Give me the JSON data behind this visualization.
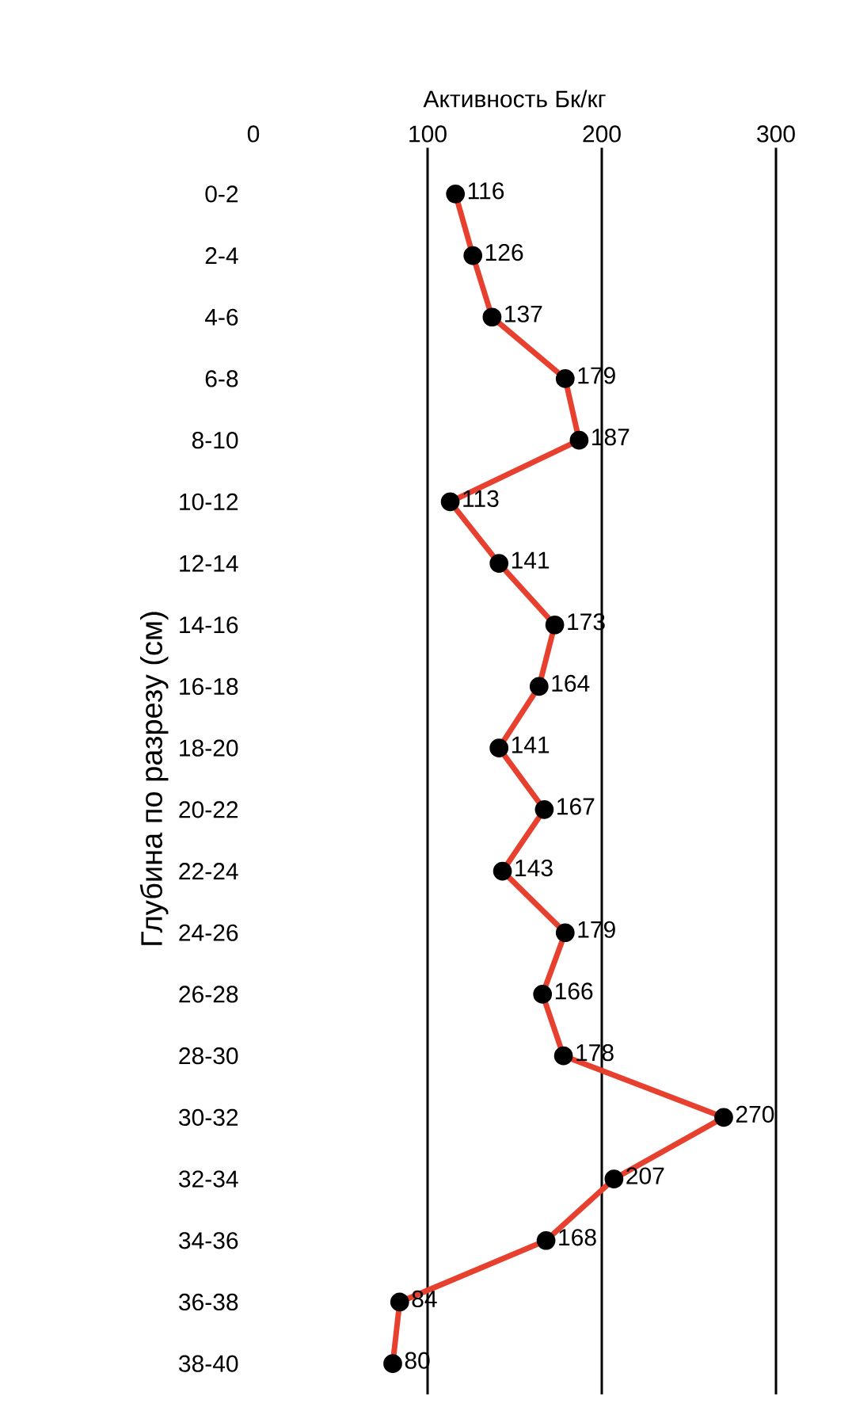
{
  "chart_data": {
    "type": "line",
    "orientation": "horizontal",
    "xlabel": "Активность Бк/кг",
    "ylabel": "Глубина по разрезу (см)",
    "categories": [
      "0-2",
      "2-4",
      "4-6",
      "6-8",
      "8-10",
      "10-12",
      "12-14",
      "14-16",
      "16-18",
      "18-20",
      "20-22",
      "22-24",
      "24-26",
      "26-28",
      "28-30",
      "30-32",
      "32-34",
      "34-36",
      "36-38",
      "38-40"
    ],
    "values": [
      116,
      126,
      137,
      179,
      187,
      113,
      141,
      173,
      164,
      141,
      167,
      143,
      179,
      166,
      178,
      270,
      207,
      168,
      84,
      80
    ],
    "color": "#e8402f",
    "marker": "circle",
    "line_style": "solid",
    "data_labels": true,
    "xlim": [
      0,
      300
    ],
    "xticks": [
      0,
      100,
      200,
      300
    ],
    "grid": "x"
  }
}
